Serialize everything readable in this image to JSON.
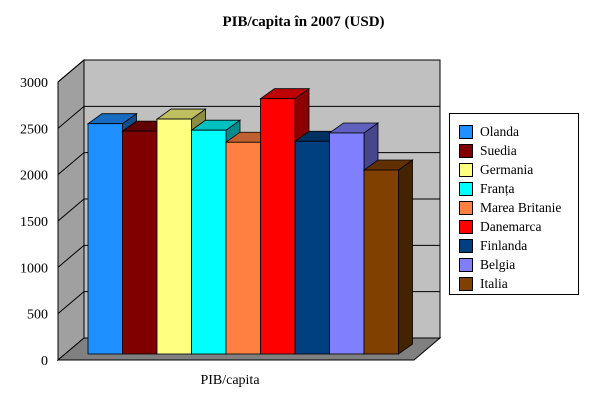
{
  "chart_data": {
    "type": "bar",
    "title": "PIB/capita în 2007 (USD)",
    "xlabel": "PIB/capita",
    "ylabel": "",
    "ylim": [
      0,
      3000
    ],
    "yticks": [
      0,
      500,
      1000,
      1500,
      2000,
      2500,
      3000
    ],
    "categories": [
      "PIB/capita"
    ],
    "grid": true,
    "legend_position": "right",
    "series": [
      {
        "name": "Olanda",
        "values": [
          2550
        ],
        "color": "#1E90FF"
      },
      {
        "name": "Suedia",
        "values": [
          2470
        ],
        "color": "#800000"
      },
      {
        "name": "Germania",
        "values": [
          2600
        ],
        "color": "#FFFF80"
      },
      {
        "name": "Franța",
        "values": [
          2480
        ],
        "color": "#00FFFF"
      },
      {
        "name": "Marea Britanie",
        "values": [
          2350
        ],
        "color": "#FF8040"
      },
      {
        "name": "Danemarca",
        "values": [
          2820
        ],
        "color": "#FF0000"
      },
      {
        "name": "Finlanda",
        "values": [
          2360
        ],
        "color": "#004080"
      },
      {
        "name": "Belgia",
        "values": [
          2450
        ],
        "color": "#8080FF"
      },
      {
        "name": "Italia",
        "values": [
          2050
        ],
        "color": "#804000"
      }
    ]
  }
}
